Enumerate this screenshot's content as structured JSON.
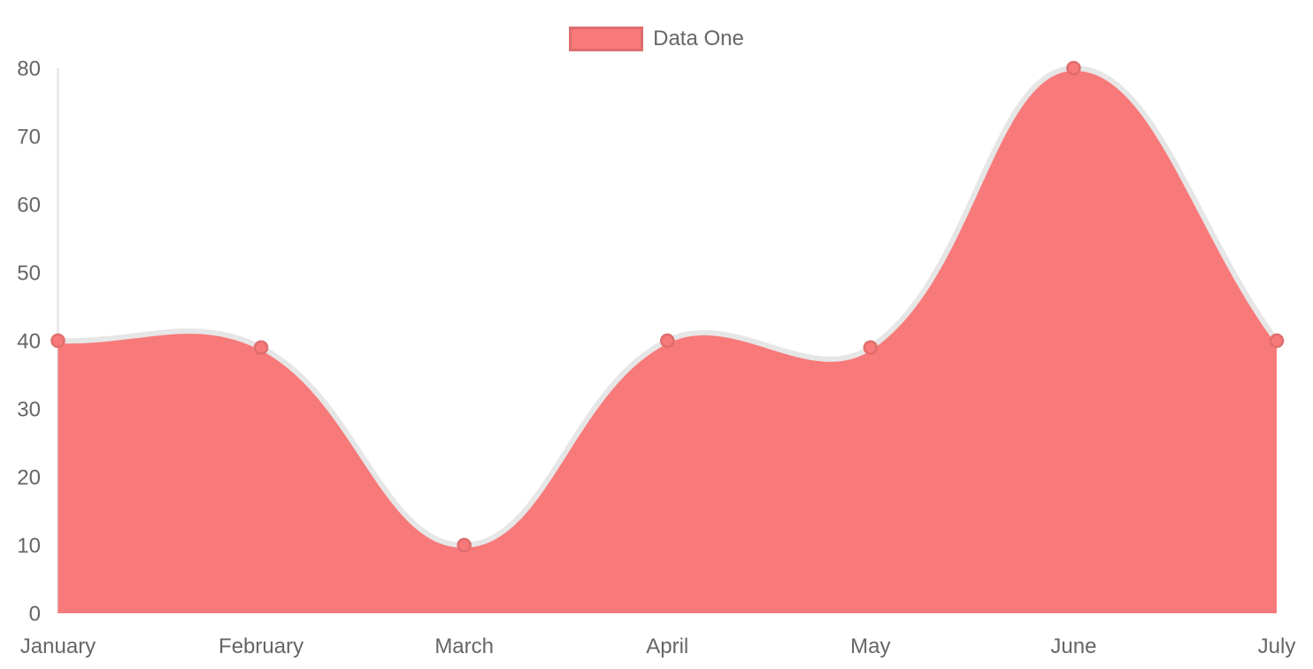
{
  "chart_data": {
    "type": "area",
    "title": "",
    "xlabel": "",
    "ylabel": "",
    "categories": [
      "January",
      "February",
      "March",
      "April",
      "May",
      "June",
      "July"
    ],
    "series": [
      {
        "name": "Data One",
        "values": [
          40,
          39,
          10,
          40,
          39,
          80,
          40
        ]
      }
    ],
    "ylim": [
      0,
      80
    ],
    "y_ticks": [
      0,
      10,
      20,
      30,
      40,
      50,
      60,
      70,
      80
    ],
    "line_tension": 0.4,
    "grid": false,
    "legend_position": "top",
    "colors": {
      "fill": "#f87979",
      "point_fill": "#f87979",
      "point_border": "#df6d6d",
      "line": "#e6e6e6",
      "axis_line": "#e5e5e5",
      "text": "#666666",
      "legend_swatch_border": "rgba(0,0,0,0.1)"
    }
  }
}
